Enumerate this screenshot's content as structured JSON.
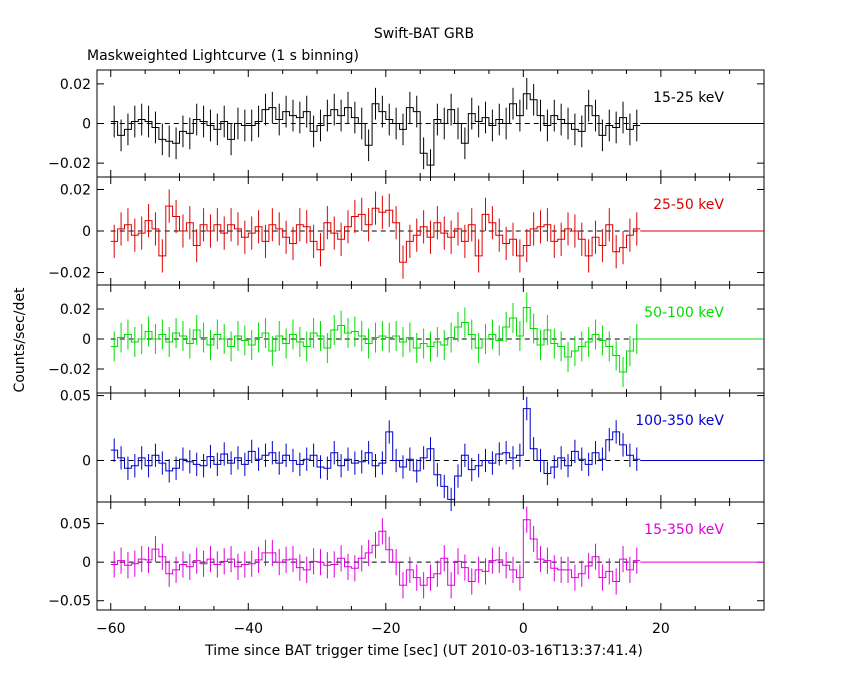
{
  "title": "Swift-BAT GRB",
  "subtitle": "Maskweighted Lightcurve (1 s binning)",
  "ylabel": "Counts/sec/det",
  "xlabel": "Time since BAT trigger time [sec] (UT 2010-03-16T13:37:41.4)",
  "chart_data": {
    "type": "line",
    "step": true,
    "xlim": [
      -62,
      35
    ],
    "xticks": [
      -60,
      -40,
      -20,
      0,
      20
    ],
    "data_range": [
      -60,
      16
    ],
    "panels": [
      {
        "name": "15-25 keV",
        "color": "#000000",
        "ylim": [
          -0.027,
          0.027
        ],
        "yticks": [
          -0.02,
          0,
          0.02
        ],
        "ytick_labels": [
          "−0.02",
          "0",
          "0.02"
        ],
        "err": 0.008,
        "x": [
          -60,
          -59,
          -58,
          -57,
          -56,
          -55,
          -54,
          -53,
          -52,
          -51,
          -50,
          -49,
          -48,
          -47,
          -46,
          -45,
          -44,
          -43,
          -42,
          -41,
          -40,
          -39,
          -38,
          -37,
          -36,
          -35,
          -34,
          -33,
          -32,
          -31,
          -30,
          -29,
          -28,
          -27,
          -26,
          -25,
          -24,
          -23,
          -22,
          -21,
          -20,
          -19,
          -18,
          -17,
          -16,
          -15,
          -14,
          -13,
          -12,
          -11,
          -10,
          -9,
          -8,
          -7,
          -6,
          -5,
          -4,
          -3,
          -2,
          -1,
          0,
          1,
          2,
          3,
          4,
          5,
          6,
          7,
          8,
          9,
          10,
          11,
          12,
          13,
          14,
          15,
          16
        ],
        "values": [
          0.001,
          -0.006,
          -0.003,
          0.001,
          0.002,
          0.001,
          -0.002,
          -0.008,
          -0.009,
          -0.01,
          -0.004,
          -0.005,
          0.002,
          0.001,
          -0.001,
          -0.003,
          0.001,
          -0.008,
          0.0,
          -0.001,
          -0.001,
          0.001,
          0.007,
          0.008,
          0.002,
          0.006,
          0.004,
          0.003,
          0.006,
          -0.004,
          -0.001,
          0.004,
          0.007,
          0.004,
          0.008,
          0.003,
          0.0,
          -0.011,
          0.01,
          0.006,
          0.002,
          0.0,
          -0.003,
          0.008,
          0.006,
          -0.015,
          -0.021,
          0.002,
          0.0,
          0.007,
          0.0,
          -0.01,
          0.005,
          0.001,
          0.003,
          -0.001,
          0.002,
          0.0,
          0.01,
          0.004,
          0.015,
          0.012,
          0.004,
          -0.001,
          0.004,
          0.002,
          0.0,
          -0.003,
          -0.004,
          0.009,
          0.004,
          -0.006,
          -0.001,
          -0.002,
          0.003,
          -0.003,
          -0.001
        ]
      },
      {
        "name": "25-50 keV",
        "color": "#dd0000",
        "ylim": [
          -0.026,
          0.026
        ],
        "yticks": [
          -0.02,
          0,
          0.02
        ],
        "ytick_labels": [
          "−0.02",
          "0",
          "0.02"
        ],
        "err": 0.008,
        "x": [
          -60,
          -59,
          -58,
          -57,
          -56,
          -55,
          -54,
          -53,
          -52,
          -51,
          -50,
          -49,
          -48,
          -47,
          -46,
          -45,
          -44,
          -43,
          -42,
          -41,
          -40,
          -39,
          -38,
          -37,
          -36,
          -35,
          -34,
          -33,
          -32,
          -31,
          -30,
          -29,
          -28,
          -27,
          -26,
          -25,
          -24,
          -23,
          -22,
          -21,
          -20,
          -19,
          -18,
          -17,
          -16,
          -15,
          -14,
          -13,
          -12,
          -11,
          -10,
          -9,
          -8,
          -7,
          -6,
          -5,
          -4,
          -3,
          -2,
          -1,
          0,
          1,
          2,
          3,
          4,
          5,
          6,
          7,
          8,
          9,
          10,
          11,
          12,
          13,
          14,
          15,
          16
        ],
        "values": [
          -0.005,
          0.001,
          0.003,
          -0.002,
          -0.001,
          0.005,
          0.001,
          -0.012,
          0.012,
          0.007,
          0.0,
          0.004,
          -0.007,
          0.003,
          0.0,
          0.003,
          -0.001,
          0.003,
          0.001,
          -0.003,
          -0.001,
          0.002,
          -0.005,
          0.003,
          0.001,
          -0.003,
          -0.006,
          0.003,
          0.002,
          -0.005,
          -0.009,
          0.004,
          -0.001,
          -0.004,
          0.002,
          0.007,
          0.008,
          0.003,
          0.011,
          0.009,
          0.01,
          0.004,
          -0.015,
          -0.005,
          -0.002,
          0.002,
          -0.003,
          0.004,
          -0.001,
          -0.003,
          0.001,
          -0.005,
          0.003,
          -0.012,
          0.008,
          0.004,
          -0.002,
          -0.006,
          -0.004,
          -0.012,
          -0.007,
          0.001,
          0.002,
          0.003,
          -0.005,
          -0.004,
          0.001,
          0.0,
          -0.004,
          -0.012,
          -0.003,
          -0.007,
          0.003,
          -0.01,
          -0.008,
          -0.002,
          0.001
        ]
      },
      {
        "name": "50-100 keV",
        "color": "#00dd00",
        "ylim": [
          -0.036,
          0.036
        ],
        "yticks": [
          -0.02,
          0,
          0.02
        ],
        "ytick_labels": [
          "−0.02",
          "0",
          "0.02"
        ],
        "err": 0.01,
        "x": [
          -60,
          -59,
          -58,
          -57,
          -56,
          -55,
          -54,
          -53,
          -52,
          -51,
          -50,
          -49,
          -48,
          -47,
          -46,
          -45,
          -44,
          -43,
          -42,
          -41,
          -40,
          -39,
          -38,
          -37,
          -36,
          -35,
          -34,
          -33,
          -32,
          -31,
          -30,
          -29,
          -28,
          -27,
          -26,
          -25,
          -24,
          -23,
          -22,
          -21,
          -20,
          -19,
          -18,
          -17,
          -16,
          -15,
          -14,
          -13,
          -12,
          -11,
          -10,
          -9,
          -8,
          -7,
          -6,
          -5,
          -4,
          -3,
          -2,
          -1,
          0,
          1,
          2,
          3,
          4,
          5,
          6,
          7,
          8,
          9,
          10,
          11,
          12,
          13,
          14,
          15,
          16
        ],
        "values": [
          -0.005,
          0.001,
          0.003,
          -0.002,
          0.0,
          0.005,
          0.0,
          0.003,
          -0.002,
          0.004,
          0.002,
          -0.003,
          0.006,
          0.001,
          -0.004,
          0.003,
          0.0,
          -0.005,
          0.002,
          -0.001,
          -0.004,
          0.001,
          0.004,
          -0.008,
          0.002,
          -0.003,
          0.003,
          -0.002,
          -0.005,
          0.004,
          0.002,
          -0.006,
          0.006,
          0.009,
          0.004,
          0.005,
          0.002,
          -0.003,
          0.001,
          0.002,
          0.001,
          0.002,
          -0.002,
          0.001,
          -0.006,
          -0.003,
          -0.005,
          -0.002,
          -0.004,
          0.001,
          0.008,
          0.011,
          0.003,
          -0.006,
          0.0,
          0.003,
          -0.001,
          0.008,
          0.014,
          0.002,
          0.021,
          0.007,
          -0.004,
          0.006,
          -0.003,
          -0.005,
          -0.012,
          -0.008,
          -0.005,
          -0.002,
          0.003,
          -0.001,
          -0.005,
          -0.011,
          -0.022,
          -0.008,
          0.0
        ]
      },
      {
        "name": "100-350 keV",
        "color": "#0000cc",
        "ylim": [
          -0.032,
          0.052
        ],
        "yticks": [
          0,
          0.05
        ],
        "ytick_labels": [
          "0",
          "0.05"
        ],
        "err": 0.009,
        "x": [
          -60,
          -59,
          -58,
          -57,
          -56,
          -55,
          -54,
          -53,
          -52,
          -51,
          -50,
          -49,
          -48,
          -47,
          -46,
          -45,
          -44,
          -43,
          -42,
          -41,
          -40,
          -39,
          -38,
          -37,
          -36,
          -35,
          -34,
          -33,
          -32,
          -31,
          -30,
          -29,
          -28,
          -27,
          -26,
          -25,
          -24,
          -23,
          -22,
          -21,
          -20,
          -19,
          -18,
          -17,
          -16,
          -15,
          -14,
          -13,
          -12,
          -11,
          -10,
          -9,
          -8,
          -7,
          -6,
          -5,
          -4,
          -3,
          -2,
          -1,
          0,
          1,
          2,
          3,
          4,
          5,
          6,
          7,
          8,
          9,
          10,
          11,
          12,
          13,
          14,
          15,
          16
        ],
        "values": [
          0.008,
          0.002,
          -0.006,
          -0.004,
          0.002,
          -0.004,
          0.004,
          -0.002,
          -0.008,
          -0.006,
          0.001,
          -0.001,
          -0.003,
          -0.004,
          0.003,
          -0.003,
          0.005,
          -0.002,
          0.002,
          -0.003,
          0.007,
          0.001,
          0.004,
          0.006,
          -0.002,
          0.004,
          0.0,
          -0.003,
          0.001,
          0.004,
          -0.005,
          -0.006,
          0.006,
          -0.004,
          0.001,
          -0.002,
          -0.001,
          0.006,
          -0.004,
          -0.002,
          0.022,
          0.0,
          -0.005,
          0.001,
          -0.008,
          0.002,
          0.009,
          -0.011,
          -0.02,
          -0.03,
          -0.012,
          0.004,
          -0.007,
          -0.004,
          0.0,
          -0.002,
          0.005,
          0.006,
          0.002,
          0.004,
          0.04,
          0.009,
          0.0,
          -0.01,
          -0.005,
          0.002,
          -0.004,
          0.007,
          0.001,
          -0.003,
          0.006,
          0.001,
          0.016,
          0.022,
          0.012,
          0.004,
          0.001
        ]
      },
      {
        "name": "15-350 keV",
        "color": "#dd00dd",
        "ylim": [
          -0.062,
          0.078
        ],
        "yticks": [
          -0.05,
          0,
          0.05
        ],
        "ytick_labels": [
          "−0.05",
          "0",
          "0.05"
        ],
        "err": 0.017,
        "x": [
          -60,
          -59,
          -58,
          -57,
          -56,
          -55,
          -54,
          -53,
          -52,
          -51,
          -50,
          -49,
          -48,
          -47,
          -46,
          -45,
          -44,
          -43,
          -42,
          -41,
          -40,
          -39,
          -38,
          -37,
          -36,
          -35,
          -34,
          -33,
          -32,
          -31,
          -30,
          -29,
          -28,
          -27,
          -26,
          -25,
          -24,
          -23,
          -22,
          -21,
          -20,
          -19,
          -18,
          -17,
          -16,
          -15,
          -14,
          -13,
          -12,
          -11,
          -10,
          -9,
          -8,
          -7,
          -6,
          -5,
          -4,
          -3,
          -2,
          -1,
          0,
          1,
          2,
          3,
          4,
          5,
          6,
          7,
          8,
          9,
          10,
          11,
          12,
          13,
          14,
          15,
          16
        ],
        "values": [
          -0.003,
          0.002,
          -0.004,
          -0.002,
          0.004,
          0.003,
          0.017,
          0.007,
          -0.015,
          -0.01,
          -0.003,
          -0.006,
          0.002,
          -0.002,
          0.004,
          -0.003,
          0.001,
          0.004,
          -0.006,
          -0.003,
          -0.002,
          0.003,
          0.012,
          0.012,
          0.0,
          0.003,
          0.004,
          -0.007,
          -0.01,
          0.001,
          0.0,
          -0.004,
          -0.003,
          0.005,
          -0.006,
          -0.008,
          0.005,
          0.012,
          0.022,
          0.04,
          0.016,
          0.0,
          -0.03,
          -0.01,
          -0.02,
          -0.03,
          -0.02,
          -0.015,
          0.005,
          -0.03,
          0.001,
          -0.007,
          -0.025,
          -0.01,
          -0.012,
          0.002,
          0.003,
          -0.004,
          -0.01,
          -0.02,
          0.055,
          0.03,
          0.004,
          0.002,
          -0.008,
          -0.01,
          -0.01,
          -0.02,
          -0.015,
          -0.005,
          0.007,
          -0.02,
          -0.012,
          -0.025,
          0.004,
          -0.01,
          0.002
        ]
      }
    ]
  }
}
